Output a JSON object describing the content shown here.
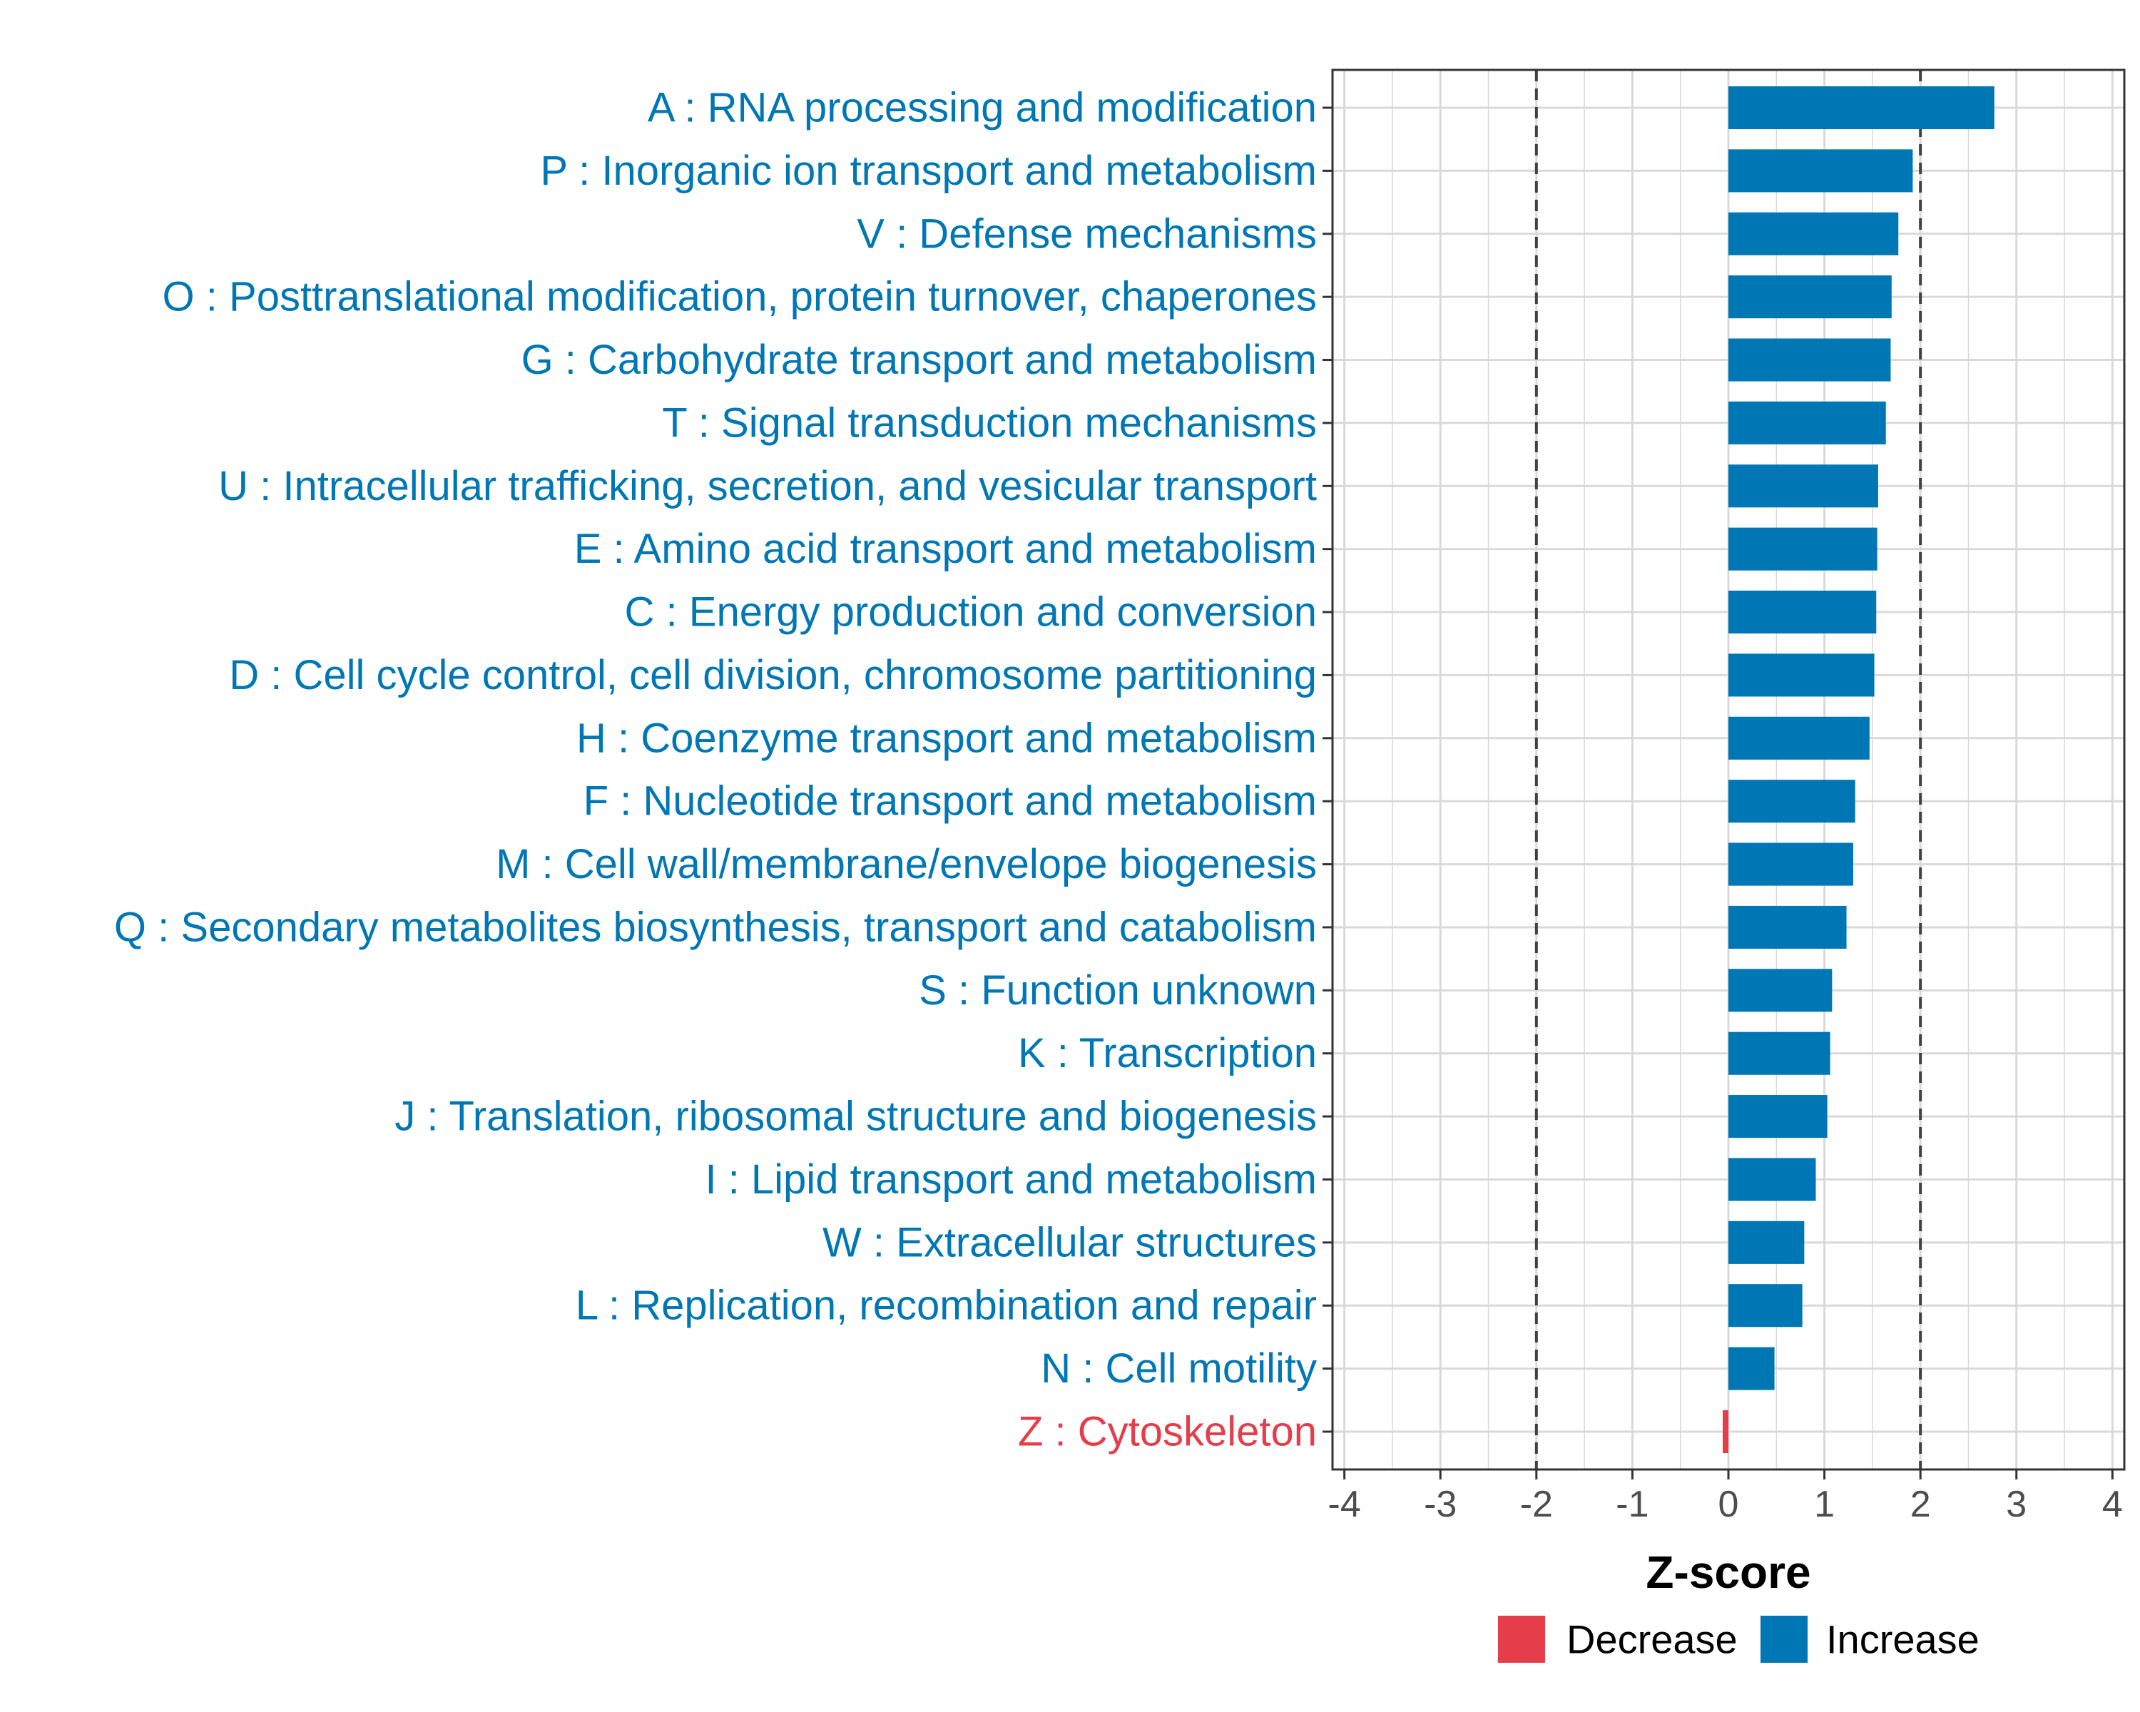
{
  "colors": {
    "increase": "#0077B5",
    "decrease": "#E53E4A",
    "grid": "#d9d9d9",
    "threshold": "#404040"
  },
  "chart_data": {
    "type": "bar",
    "orientation": "horizontal",
    "xlabel": "Z-score",
    "ylabel": "",
    "xlim": [
      -4,
      4
    ],
    "x_ticks": [
      -4,
      -3,
      -2,
      -1,
      0,
      1,
      2,
      3,
      4
    ],
    "x_tick_labels": [
      "-4",
      "-3",
      "-2",
      "-1",
      "0",
      "1",
      "2",
      "3",
      "4"
    ],
    "threshold_lines": [
      -2,
      2
    ],
    "grid": true,
    "legend_position": "bottom",
    "legend": [
      {
        "label": "Decrease",
        "color": "#E53E4A"
      },
      {
        "label": "Increase",
        "color": "#0077B5"
      }
    ],
    "categories": [
      "A : RNA processing and modification",
      "P : Inorganic ion transport and metabolism",
      "V : Defense mechanisms",
      "O : Posttranslational modification, protein turnover, chaperones",
      "G : Carbohydrate transport and metabolism",
      "T : Signal transduction mechanisms",
      "U : Intracellular trafficking, secretion, and vesicular transport",
      "E : Amino acid transport and metabolism",
      "C : Energy production and conversion",
      "D : Cell cycle control, cell division, chromosome partitioning",
      "H : Coenzyme transport and metabolism",
      "F : Nucleotide transport and metabolism",
      "M : Cell wall/membrane/envelope biogenesis",
      "Q : Secondary metabolites biosynthesis, transport and catabolism",
      "S : Function unknown",
      "K : Transcription",
      "J : Translation, ribosomal structure and biogenesis",
      "I : Lipid transport and metabolism",
      "W : Extracellular structures",
      "L : Replication, recombination and repair",
      "N : Cell motility",
      "Z : Cytoskeleton"
    ],
    "values": [
      2.77,
      1.92,
      1.77,
      1.7,
      1.69,
      1.64,
      1.56,
      1.55,
      1.54,
      1.52,
      1.47,
      1.32,
      1.3,
      1.23,
      1.08,
      1.06,
      1.03,
      0.91,
      0.79,
      0.77,
      0.48,
      -0.03
    ],
    "direction": [
      "Increase",
      "Increase",
      "Increase",
      "Increase",
      "Increase",
      "Increase",
      "Increase",
      "Increase",
      "Increase",
      "Increase",
      "Increase",
      "Increase",
      "Increase",
      "Increase",
      "Increase",
      "Increase",
      "Increase",
      "Increase",
      "Increase",
      "Increase",
      "Increase",
      "Decrease"
    ]
  }
}
